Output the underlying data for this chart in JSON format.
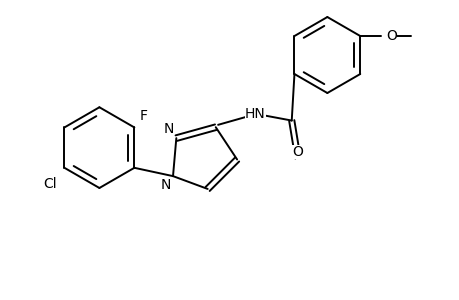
{
  "bg_color": "#ffffff",
  "line_color": "#000000",
  "line_width": 1.4,
  "font_size": 10,
  "figsize": [
    4.6,
    3.0
  ],
  "dpi": 100,
  "xlim": [
    0,
    9.5
  ],
  "ylim": [
    0,
    6.2
  ]
}
